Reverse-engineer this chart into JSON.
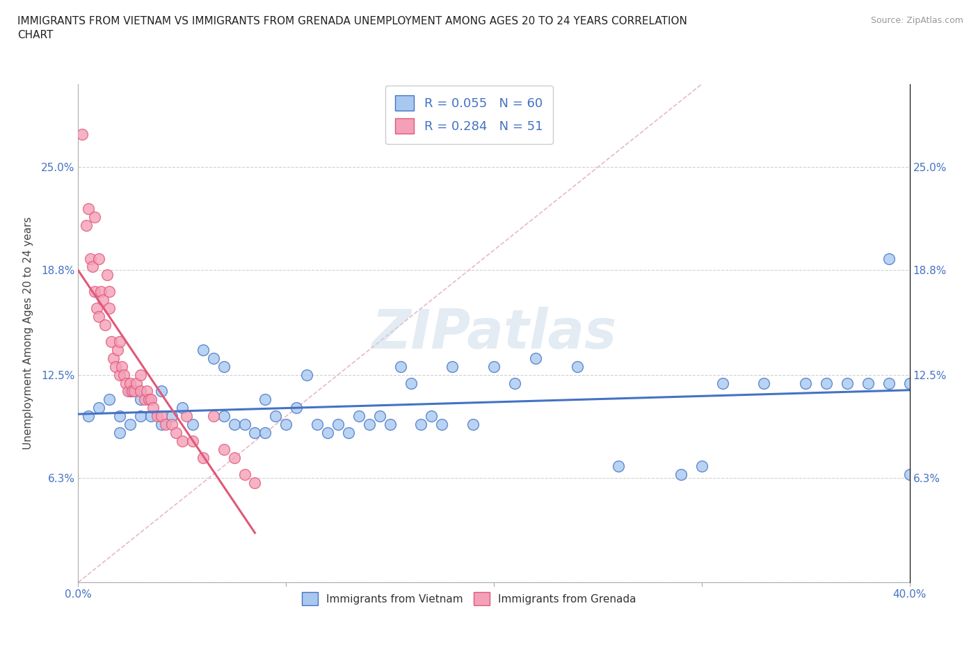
{
  "title": "IMMIGRANTS FROM VIETNAM VS IMMIGRANTS FROM GRENADA UNEMPLOYMENT AMONG AGES 20 TO 24 YEARS CORRELATION\nCHART",
  "source": "Source: ZipAtlas.com",
  "ylabel": "Unemployment Among Ages 20 to 24 years",
  "xlim": [
    0.0,
    0.4
  ],
  "ylim": [
    0.0,
    0.3
  ],
  "xticks": [
    0.0,
    0.1,
    0.2,
    0.3,
    0.4
  ],
  "xticklabels": [
    "0.0%",
    "",
    "",
    "",
    "40.0%"
  ],
  "yticks": [
    0.0,
    0.063,
    0.125,
    0.188,
    0.25
  ],
  "yticklabels": [
    "",
    "6.3%",
    "12.5%",
    "18.8%",
    "25.0%"
  ],
  "vietnam_color": "#a8c8f0",
  "grenada_color": "#f4a0b8",
  "vietnam_line_color": "#4472c4",
  "grenada_line_color": "#e05878",
  "R_vietnam": 0.055,
  "N_vietnam": 60,
  "R_grenada": 0.284,
  "N_grenada": 51,
  "grid_color": "#d0d0d0",
  "background_color": "#ffffff",
  "watermark": "ZIPatlas",
  "vietnam_scatter_x": [
    0.005,
    0.01,
    0.015,
    0.02,
    0.02,
    0.025,
    0.025,
    0.03,
    0.03,
    0.035,
    0.04,
    0.04,
    0.045,
    0.05,
    0.055,
    0.06,
    0.065,
    0.07,
    0.07,
    0.075,
    0.08,
    0.085,
    0.09,
    0.09,
    0.095,
    0.1,
    0.105,
    0.11,
    0.115,
    0.12,
    0.125,
    0.13,
    0.135,
    0.14,
    0.145,
    0.15,
    0.155,
    0.16,
    0.165,
    0.17,
    0.175,
    0.18,
    0.19,
    0.2,
    0.21,
    0.22,
    0.24,
    0.26,
    0.29,
    0.3,
    0.31,
    0.33,
    0.35,
    0.36,
    0.37,
    0.38,
    0.39,
    0.39,
    0.4,
    0.4
  ],
  "vietnam_scatter_y": [
    0.1,
    0.105,
    0.11,
    0.1,
    0.09,
    0.095,
    0.115,
    0.1,
    0.11,
    0.1,
    0.095,
    0.115,
    0.1,
    0.105,
    0.095,
    0.14,
    0.135,
    0.13,
    0.1,
    0.095,
    0.095,
    0.09,
    0.09,
    0.11,
    0.1,
    0.095,
    0.105,
    0.125,
    0.095,
    0.09,
    0.095,
    0.09,
    0.1,
    0.095,
    0.1,
    0.095,
    0.13,
    0.12,
    0.095,
    0.1,
    0.095,
    0.13,
    0.095,
    0.13,
    0.12,
    0.135,
    0.13,
    0.07,
    0.065,
    0.07,
    0.12,
    0.12,
    0.12,
    0.12,
    0.12,
    0.12,
    0.12,
    0.195,
    0.065,
    0.12
  ],
  "grenada_scatter_x": [
    0.002,
    0.004,
    0.005,
    0.006,
    0.007,
    0.008,
    0.008,
    0.009,
    0.01,
    0.01,
    0.011,
    0.012,
    0.013,
    0.014,
    0.015,
    0.015,
    0.016,
    0.017,
    0.018,
    0.019,
    0.02,
    0.02,
    0.021,
    0.022,
    0.023,
    0.024,
    0.025,
    0.026,
    0.027,
    0.028,
    0.03,
    0.03,
    0.032,
    0.033,
    0.034,
    0.035,
    0.036,
    0.038,
    0.04,
    0.042,
    0.045,
    0.047,
    0.05,
    0.052,
    0.055,
    0.06,
    0.065,
    0.07,
    0.075,
    0.08,
    0.085
  ],
  "grenada_scatter_y": [
    0.27,
    0.215,
    0.225,
    0.195,
    0.19,
    0.175,
    0.22,
    0.165,
    0.16,
    0.195,
    0.175,
    0.17,
    0.155,
    0.185,
    0.165,
    0.175,
    0.145,
    0.135,
    0.13,
    0.14,
    0.125,
    0.145,
    0.13,
    0.125,
    0.12,
    0.115,
    0.12,
    0.115,
    0.115,
    0.12,
    0.115,
    0.125,
    0.11,
    0.115,
    0.11,
    0.11,
    0.105,
    0.1,
    0.1,
    0.095,
    0.095,
    0.09,
    0.085,
    0.1,
    0.085,
    0.075,
    0.1,
    0.08,
    0.075,
    0.065,
    0.06
  ]
}
